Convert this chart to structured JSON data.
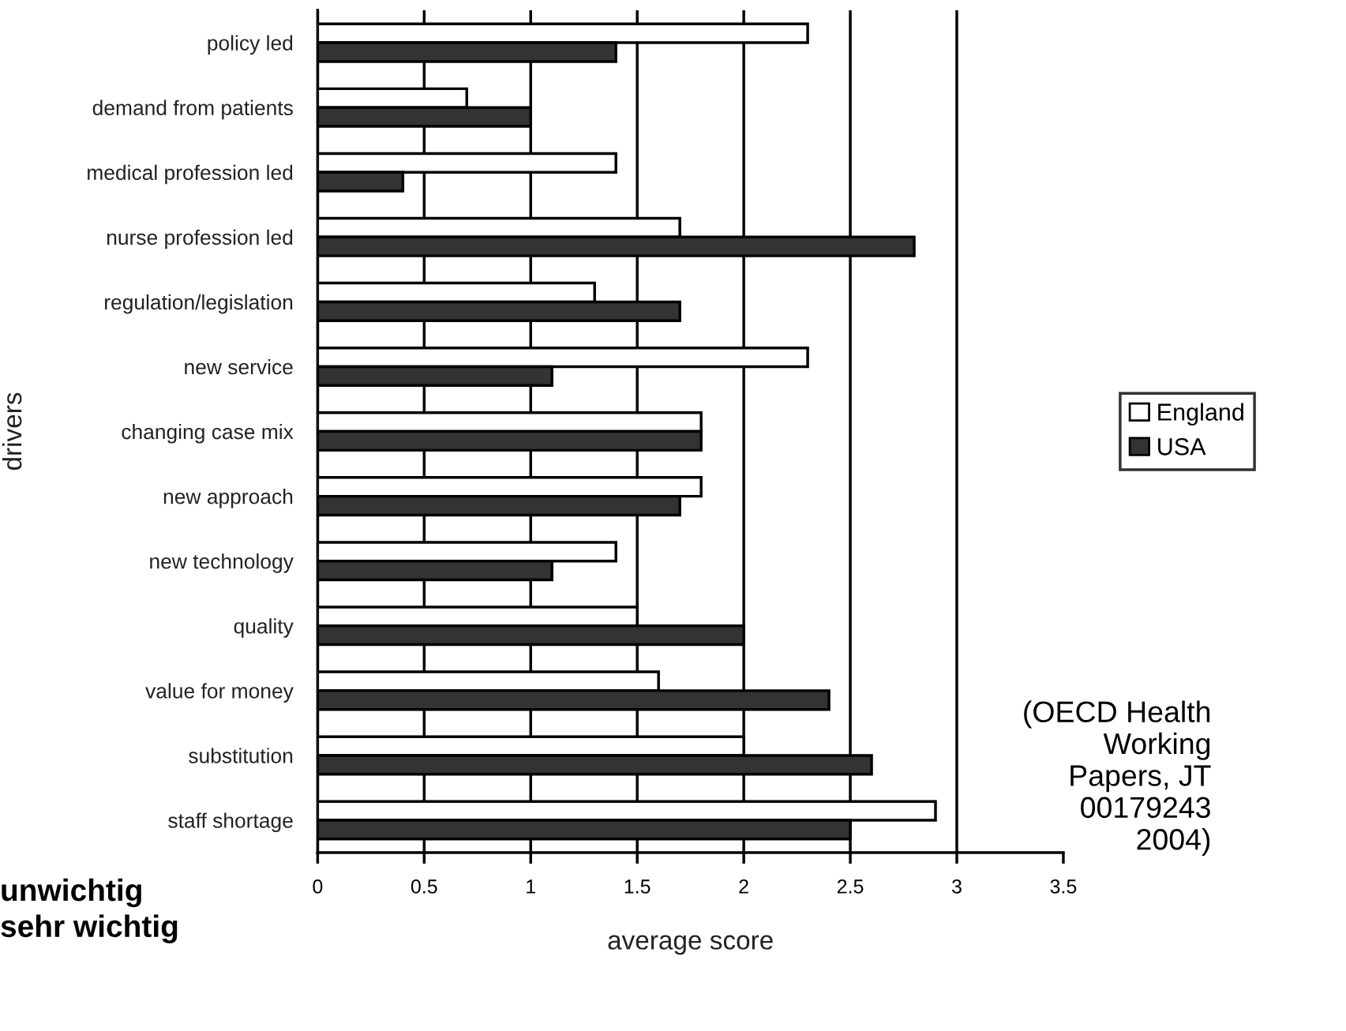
{
  "chart_data": {
    "type": "bar",
    "orientation": "horizontal",
    "xlabel": "average score",
    "ylabel": "drivers",
    "categories": [
      "policy led",
      "demand from patients",
      "medical profession led",
      "nurse profession led",
      "regulation/legislation",
      "new service",
      "changing case mix",
      "new approach",
      "new technology",
      "quality",
      "value for money",
      "substitution",
      "staff shortage"
    ],
    "series": [
      {
        "name": "England",
        "color": "#ffffff",
        "values": [
          2.3,
          0.7,
          1.4,
          1.7,
          1.3,
          2.3,
          1.8,
          1.8,
          1.4,
          1.5,
          1.6,
          2.0,
          2.9
        ]
      },
      {
        "name": "USA",
        "color": "#333333",
        "values": [
          1.4,
          1.0,
          0.4,
          2.8,
          1.7,
          1.1,
          1.8,
          1.7,
          1.1,
          2.0,
          2.4,
          2.6,
          2.5
        ]
      }
    ],
    "xlim": [
      0,
      3.5
    ],
    "xticks": [
      0,
      0.5,
      1,
      1.5,
      2,
      2.5,
      3,
      3.5
    ],
    "grid": "x",
    "legend": "right",
    "annotations": [
      "(OECD Health Working Papers, JT 00179243 2004)",
      "unwichtig",
      "sehr wichtig"
    ]
  }
}
